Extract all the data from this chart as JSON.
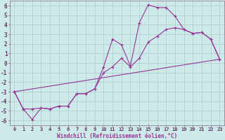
{
  "xlabel": "Windchill (Refroidissement éolien,°C)",
  "bg_color": "#cceae7",
  "grid_color": "#aacccc",
  "line_color": "#993399",
  "spine_color": "#886688",
  "xlim": [
    -0.5,
    23.5
  ],
  "ylim": [
    -6.5,
    6.5
  ],
  "xticks": [
    0,
    1,
    2,
    3,
    4,
    5,
    6,
    7,
    8,
    9,
    10,
    11,
    12,
    13,
    14,
    15,
    16,
    17,
    18,
    19,
    20,
    21,
    22,
    23
  ],
  "yticks": [
    -6,
    -5,
    -4,
    -3,
    -2,
    -1,
    0,
    1,
    2,
    3,
    4,
    5,
    6
  ],
  "line1_x": [
    0,
    1,
    2,
    3,
    4,
    5,
    6,
    7,
    8,
    9,
    10,
    11,
    12,
    13,
    14,
    15,
    16,
    17,
    18,
    19,
    20,
    21,
    22,
    23
  ],
  "line1_y": [
    -3.0,
    -4.8,
    -5.9,
    -4.7,
    -4.8,
    -4.5,
    -4.5,
    -3.2,
    -3.2,
    -2.7,
    -0.4,
    2.5,
    1.9,
    -0.3,
    4.2,
    6.1,
    5.8,
    5.8,
    4.9,
    3.5,
    3.1,
    3.2,
    2.5,
    0.4
  ],
  "line2_x": [
    0,
    1,
    2,
    3,
    4,
    5,
    6,
    7,
    8,
    9,
    10,
    11,
    12,
    13,
    14,
    15,
    16,
    17,
    18,
    19,
    20,
    21,
    22,
    23
  ],
  "line2_y": [
    -3.0,
    -4.8,
    -4.8,
    -4.7,
    -4.8,
    -4.5,
    -4.5,
    -3.2,
    -3.2,
    -2.7,
    -1.0,
    -0.4,
    0.5,
    -0.4,
    0.5,
    2.2,
    2.8,
    3.5,
    3.7,
    3.5,
    3.1,
    3.2,
    2.5,
    0.4
  ],
  "line3_x": [
    0,
    23
  ],
  "line3_y": [
    -3.0,
    0.4
  ],
  "marker": "+",
  "markersize": 3,
  "linewidth": 0.8
}
